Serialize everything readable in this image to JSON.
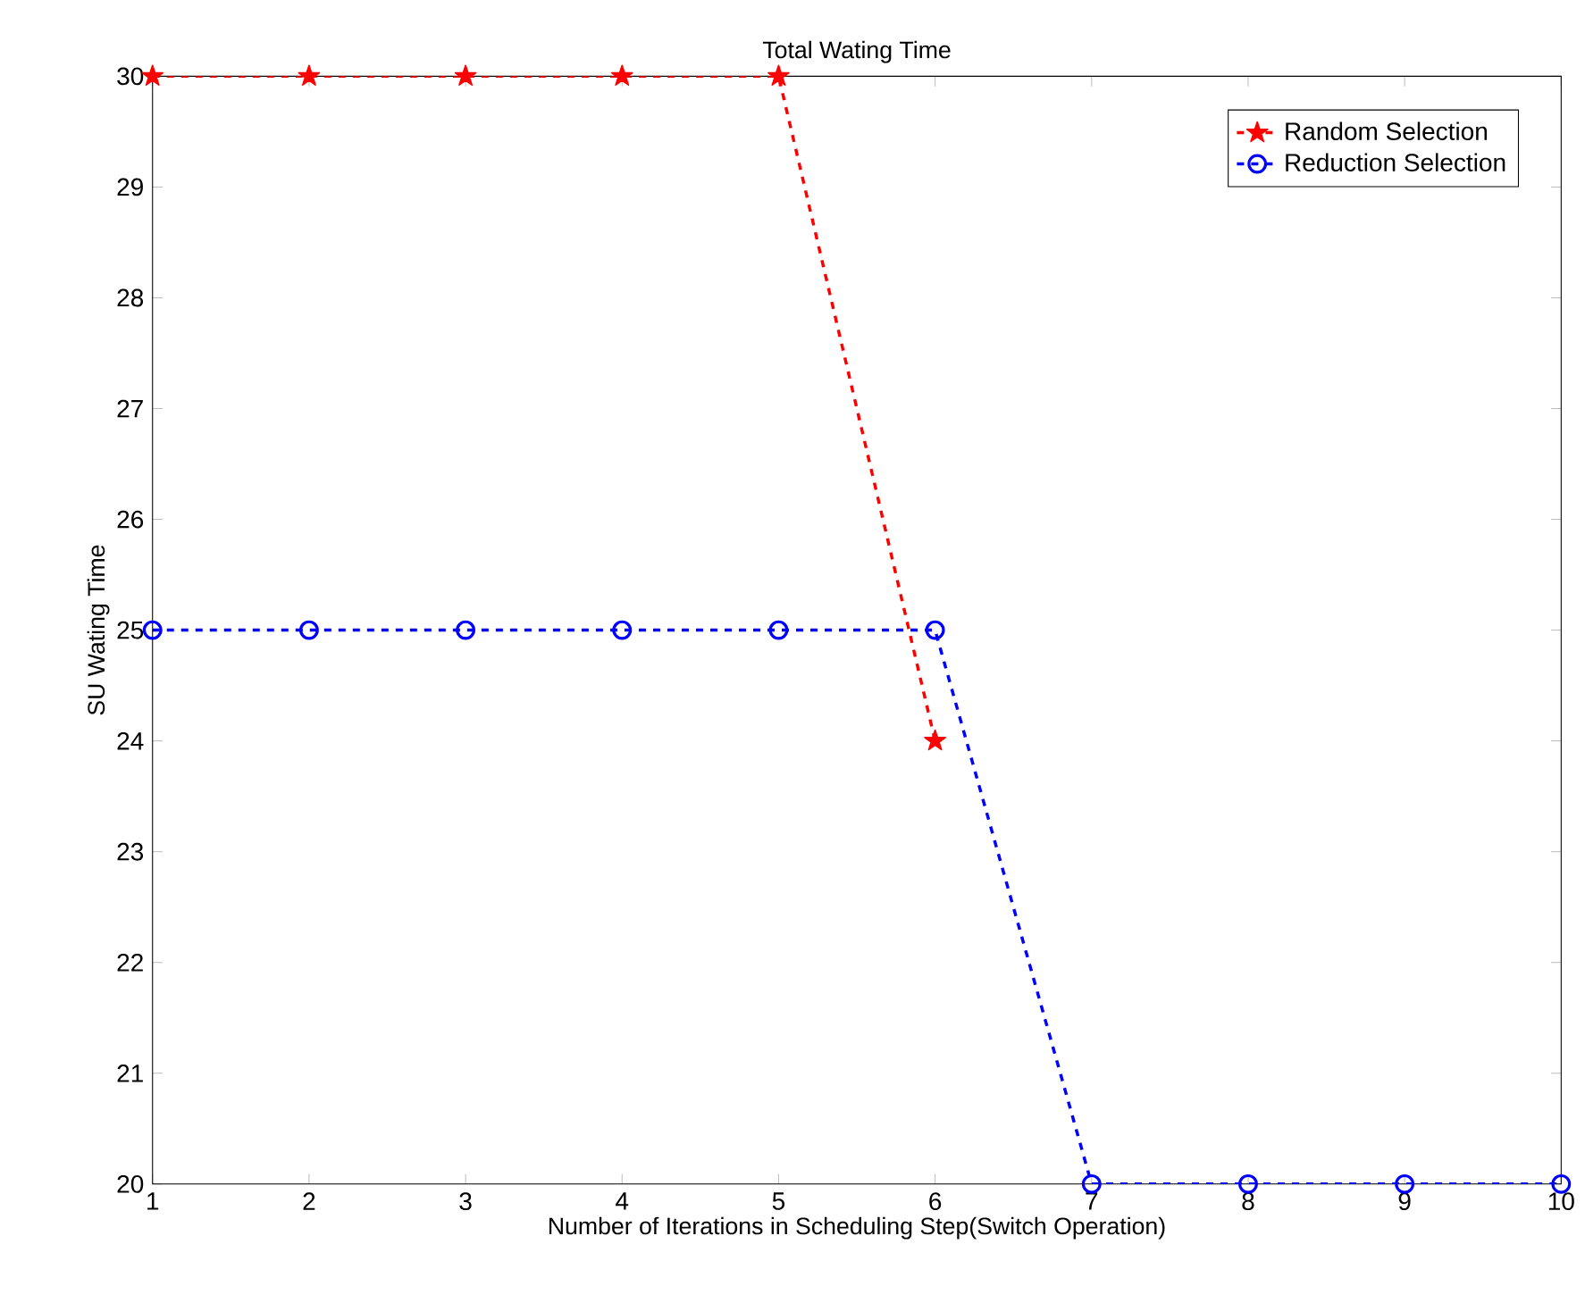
{
  "chart_data": {
    "type": "line",
    "title": "Total Wating Time",
    "xlabel": "Number of Iterations in Scheduling Step(Switch Operation)",
    "ylabel": "SU Wating Time",
    "xlim": [
      1,
      10
    ],
    "xticks": [
      1,
      2,
      3,
      4,
      5,
      6,
      7,
      8,
      9,
      10
    ],
    "ylim": [
      20,
      30
    ],
    "yticks": [
      20,
      21,
      22,
      23,
      24,
      25,
      26,
      27,
      28,
      29,
      30
    ],
    "legend": "top right",
    "line_style": "dashed",
    "grid": false,
    "series": [
      {
        "name": "Random Selection",
        "color": "#ff0000",
        "marker": "star",
        "x": [
          1,
          2,
          3,
          4,
          5,
          6
        ],
        "values": [
          30,
          30,
          30,
          30,
          30,
          24
        ]
      },
      {
        "name": "Reduction Selection",
        "color": "#0000ff",
        "marker": "circle",
        "x": [
          1,
          2,
          3,
          4,
          5,
          6,
          7,
          8,
          9,
          10
        ],
        "values": [
          25,
          25,
          25,
          25,
          25,
          25,
          20,
          20,
          20,
          20
        ]
      }
    ]
  }
}
